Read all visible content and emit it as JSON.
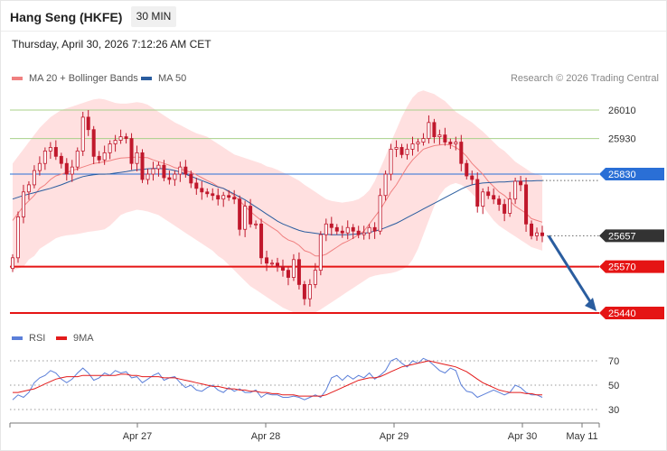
{
  "header": {
    "instrument": "Hang Seng (HKFE)",
    "timeframe": "30 MIN",
    "datetime": "Thursday, April 30, 2026 7:12:26 AM CET",
    "copyright": "Research © 2026 Trading Central"
  },
  "legend": {
    "ma20_label": "MA 20 + Bollinger Bands",
    "ma50_label": "MA 50",
    "rsi_label": "RSI",
    "rsi_ma_label": "9MA"
  },
  "colors": {
    "ma20": "#f08080",
    "ma50": "#2a5d9f",
    "bands_fill": "#ffd6d6",
    "candle": "#c0182c",
    "resistance_green": "#a8d18a",
    "blue_level": "#2a6fd6",
    "support_red": "#e51414",
    "current": "#333333",
    "rsi": "#5b7fd9",
    "rsi_ma": "#e31b1b",
    "arrow": "#2a5d9f"
  },
  "chart_data": {
    "type": "candlestick",
    "price_axis": {
      "min": 25420,
      "max": 26050
    },
    "x_labels": [
      "Apr 27",
      "Apr 28",
      "Apr 29",
      "Apr 30",
      "May 11"
    ],
    "levels": [
      {
        "value": 26010,
        "label": "26010",
        "kind": "resistance"
      },
      {
        "value": 25930,
        "label": "25930",
        "kind": "resistance"
      },
      {
        "value": 25830,
        "label": "25830",
        "kind": "pivot"
      },
      {
        "value": 25657,
        "label": "25657",
        "kind": "current"
      },
      {
        "value": 25570,
        "label": "25570",
        "kind": "support"
      },
      {
        "value": 25440,
        "label": "25440",
        "kind": "support"
      }
    ],
    "projection": {
      "from": 25657,
      "to": 25440
    },
    "closes": [
      25595,
      25710,
      25780,
      25800,
      25840,
      25860,
      25895,
      25905,
      25880,
      25860,
      25830,
      25850,
      25895,
      25990,
      25955,
      25880,
      25870,
      25890,
      25915,
      25925,
      25935,
      25930,
      25860,
      25890,
      25815,
      25830,
      25845,
      25855,
      25820,
      25815,
      25830,
      25850,
      25830,
      25805,
      25790,
      25780,
      25775,
      25770,
      25760,
      25770,
      25765,
      25760,
      25675,
      25740,
      25690,
      25690,
      25595,
      25580,
      25580,
      25570,
      25560,
      25540,
      25590,
      25520,
      25480,
      25520,
      25560,
      25660,
      25690,
      25680,
      25670,
      25665,
      25680,
      25670,
      25660,
      25665,
      25680,
      25670,
      25770,
      25830,
      25900,
      25905,
      25885,
      25900,
      25915,
      25920,
      25930,
      25975,
      25935,
      25940,
      25920,
      25915,
      25920,
      25860,
      25825,
      25815,
      25740,
      25780,
      25770,
      25760,
      25745,
      25720,
      25760,
      25810,
      25800,
      25690,
      25657,
      25665,
      25657
    ],
    "ma20": [
      25700,
      25720,
      25740,
      25755,
      25770,
      25790,
      25800,
      25815,
      25825,
      25830,
      25835,
      25840,
      25845,
      25850,
      25855,
      25860,
      25862,
      25865,
      25868,
      25872,
      25875,
      25876,
      25877,
      25878,
      25877,
      25876,
      25870,
      25865,
      25860,
      25855,
      25848,
      25845,
      25840,
      25835,
      25828,
      25820,
      25812,
      25805,
      25795,
      25790,
      25780,
      25770,
      25755,
      25740,
      25725,
      25712,
      25700,
      25690,
      25680,
      25670,
      25655,
      25645,
      25640,
      25630,
      25615,
      25610,
      25600,
      25600,
      25605,
      25615,
      25625,
      25635,
      25642,
      25650,
      25660,
      25670,
      25690,
      25710,
      25730,
      25755,
      25780,
      25800,
      25825,
      25850,
      25870,
      25885,
      25900,
      25905,
      25910,
      25912,
      25914,
      25912,
      25905,
      25895,
      25880,
      25860,
      25845,
      25830,
      25810,
      25795,
      25780,
      25770,
      25755,
      25740,
      25730,
      25720,
      25705,
      25700,
      25695
    ],
    "ma50": [
      25760,
      25765,
      25770,
      25774,
      25778,
      25782,
      25786,
      25790,
      25795,
      25800,
      25806,
      25812,
      25818,
      25823,
      25826,
      25828,
      25830,
      25830,
      25831,
      25833,
      25835,
      25837,
      25840,
      25842,
      25843,
      25845,
      25846,
      25846,
      25845,
      25843,
      25840,
      25836,
      25830,
      25824,
      25818,
      25812,
      25806,
      25800,
      25794,
      25790,
      25782,
      25774,
      25766,
      25758,
      25748,
      25738,
      25728,
      25718,
      25708,
      25698,
      25690,
      25684,
      25678,
      25672,
      25668,
      25666,
      25664,
      25662,
      25661,
      25660,
      25660,
      25660,
      25660,
      25661,
      25662,
      25664,
      25666,
      25670,
      25674,
      25680,
      25686,
      25692,
      25700,
      25708,
      25716,
      25724,
      25732,
      25740,
      25748,
      25756,
      25764,
      25772,
      25780,
      25788,
      25795,
      25800,
      25803,
      25805,
      25806,
      25807,
      25808,
      25808,
      25809,
      25810,
      25810,
      25811,
      25811,
      25812,
      25812
    ],
    "bb_upper": [
      25860,
      25880,
      25900,
      25920,
      25940,
      25960,
      25975,
      25990,
      26000,
      26010,
      26015,
      26020,
      26025,
      26030,
      26035,
      26040,
      26042,
      26040,
      26035,
      26030,
      26028,
      26028,
      26030,
      26032,
      26030,
      26025,
      26015,
      26005,
      25995,
      25985,
      25975,
      25968,
      25960,
      25952,
      25945,
      25940,
      25935,
      25925,
      25915,
      25905,
      25895,
      25885,
      25880,
      25875,
      25870,
      25865,
      25860,
      25852,
      25848,
      25842,
      25835,
      25828,
      25820,
      25812,
      25800,
      25790,
      25780,
      25770,
      25760,
      25755,
      25752,
      25750,
      25752,
      25755,
      25760,
      25770,
      25785,
      25810,
      25845,
      25880,
      25920,
      25955,
      25990,
      26020,
      26045,
      26060,
      26065,
      26060,
      26055,
      26045,
      26035,
      26020,
      26005,
      25995,
      25985,
      25975,
      25962,
      25950,
      25935,
      25920,
      25905,
      25895,
      25880,
      25865,
      25855,
      25845,
      25835,
      25830,
      25825
    ],
    "bb_lower": [
      25560,
      25565,
      25570,
      25590,
      25600,
      25620,
      25630,
      25640,
      25650,
      25655,
      25658,
      25660,
      25662,
      25665,
      25668,
      25670,
      25672,
      25675,
      25685,
      25700,
      25715,
      25722,
      25726,
      25730,
      25728,
      25725,
      25720,
      25715,
      25705,
      25695,
      25685,
      25675,
      25665,
      25655,
      25645,
      25635,
      25625,
      25615,
      25600,
      25590,
      25575,
      25560,
      25545,
      25530,
      25515,
      25505,
      25495,
      25485,
      25475,
      25465,
      25455,
      25448,
      25442,
      25440,
      25438,
      25440,
      25442,
      25450,
      25460,
      25470,
      25480,
      25490,
      25500,
      25510,
      25520,
      25530,
      25540,
      25545,
      25548,
      25550,
      25552,
      25556,
      25562,
      25570,
      25590,
      25620,
      25660,
      25700,
      25740,
      25770,
      25790,
      25800,
      25805,
      25800,
      25790,
      25775,
      25760,
      25740,
      25720,
      25700,
      25685,
      25675,
      25665,
      25655,
      25645,
      25635,
      25625,
      25620,
      25615
    ],
    "rsi_axis": {
      "min": 30,
      "max": 75,
      "ticks": [
        70,
        50,
        30
      ]
    },
    "rsi": [
      38,
      42,
      40,
      44,
      52,
      56,
      58,
      62,
      60,
      55,
      52,
      55,
      60,
      64,
      60,
      54,
      56,
      60,
      58,
      62,
      60,
      61,
      56,
      57,
      52,
      55,
      58,
      60,
      54,
      56,
      57,
      52,
      48,
      50,
      46,
      45,
      48,
      50,
      46,
      44,
      48,
      45,
      47,
      44,
      44,
      46,
      40,
      43,
      42,
      42,
      40,
      40,
      41,
      40,
      38,
      40,
      42,
      40,
      46,
      56,
      58,
      54,
      58,
      55,
      58,
      56,
      60,
      55,
      58,
      62,
      70,
      72,
      68,
      65,
      70,
      68,
      72,
      70,
      66,
      62,
      60,
      64,
      62,
      50,
      45,
      44,
      40,
      42,
      44,
      46,
      44,
      42,
      44,
      50,
      48,
      44,
      42,
      42,
      40
    ],
    "rsi_ma": [
      44,
      44,
      45,
      46,
      47,
      49,
      51,
      53,
      55,
      56,
      57,
      57,
      57,
      58,
      58,
      58,
      58,
      58,
      58,
      58,
      59,
      59,
      58,
      58,
      57,
      57,
      57,
      57,
      56,
      56,
      56,
      55,
      54,
      53,
      52,
      51,
      50,
      49,
      49,
      48,
      47,
      47,
      46,
      46,
      45,
      45,
      44,
      44,
      43,
      43,
      42,
      42,
      42,
      41,
      41,
      41,
      41,
      41,
      42,
      44,
      46,
      48,
      50,
      52,
      54,
      55,
      56,
      56,
      57,
      59,
      61,
      63,
      65,
      66,
      67,
      68,
      69,
      70,
      69,
      68,
      67,
      66,
      65,
      63,
      61,
      58,
      55,
      52,
      50,
      48,
      46,
      45,
      44,
      44,
      44,
      43,
      43,
      42,
      42
    ]
  }
}
